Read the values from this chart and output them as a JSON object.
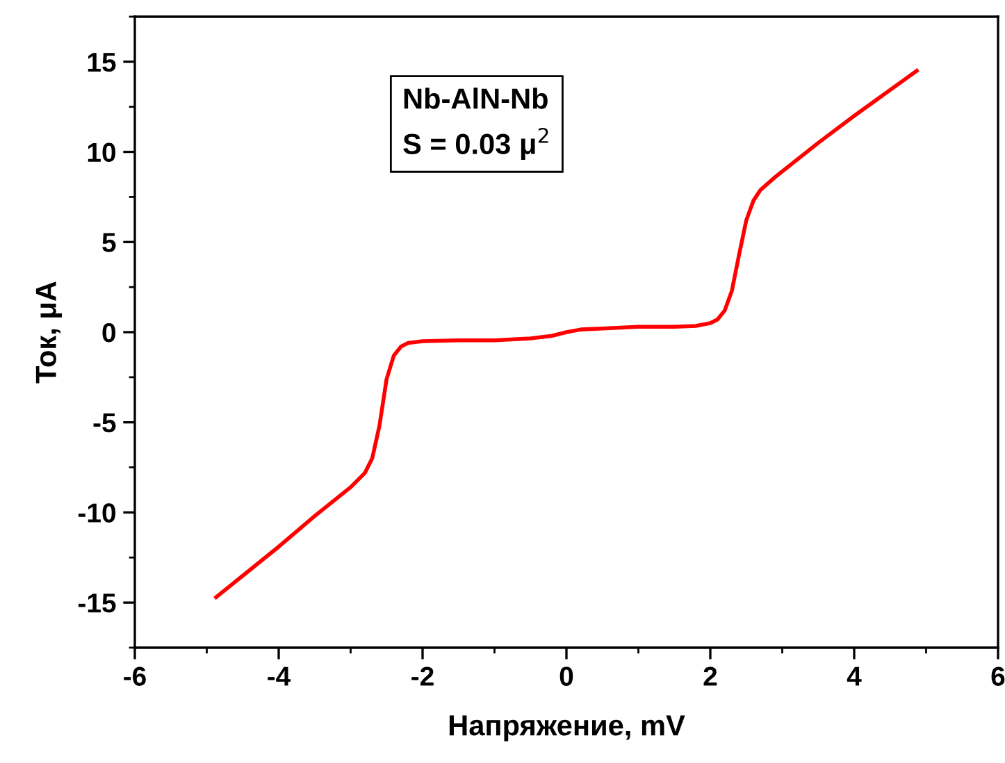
{
  "chart_data": {
    "type": "line",
    "xlabel": "Напряжение, mV",
    "ylabel": "Ток, μA",
    "annotations": [
      "Nb-AlN-Nb\nS = 0.03 μ$^{2}$"
    ],
    "series": [
      {
        "color": "#ff0000",
        "x": [
          -4.87,
          -4.0,
          -3.5,
          -3.0,
          -2.8,
          -2.7,
          -2.6,
          -2.5,
          -2.4,
          -2.3,
          -2.2,
          -2.0,
          -1.5,
          -1.0,
          -0.5,
          -0.2,
          0.0,
          0.2,
          0.5,
          1.0,
          1.5,
          1.8,
          2.0,
          2.1,
          2.2,
          2.3,
          2.4,
          2.5,
          2.6,
          2.7,
          2.9,
          3.5,
          4.0,
          4.87
        ],
        "values": [
          -14.7,
          -11.9,
          -10.2,
          -8.6,
          -7.8,
          -7.0,
          -5.2,
          -2.6,
          -1.3,
          -0.8,
          -0.6,
          -0.5,
          -0.45,
          -0.45,
          -0.35,
          -0.2,
          0.0,
          0.15,
          0.2,
          0.3,
          0.3,
          0.35,
          0.5,
          0.7,
          1.2,
          2.3,
          4.3,
          6.2,
          7.3,
          7.9,
          8.6,
          10.5,
          12.0,
          14.5
        ]
      }
    ],
    "xlim": [
      -6,
      6
    ],
    "ylim": [
      -17.5,
      17.5
    ],
    "xticks": [
      -6,
      -4,
      -2,
      0,
      2,
      4,
      6
    ],
    "yticks": [
      -15,
      -10,
      -5,
      0,
      5,
      10,
      15
    ],
    "grid": false,
    "legend": false,
    "marker": "none",
    "line_style": "solid"
  }
}
